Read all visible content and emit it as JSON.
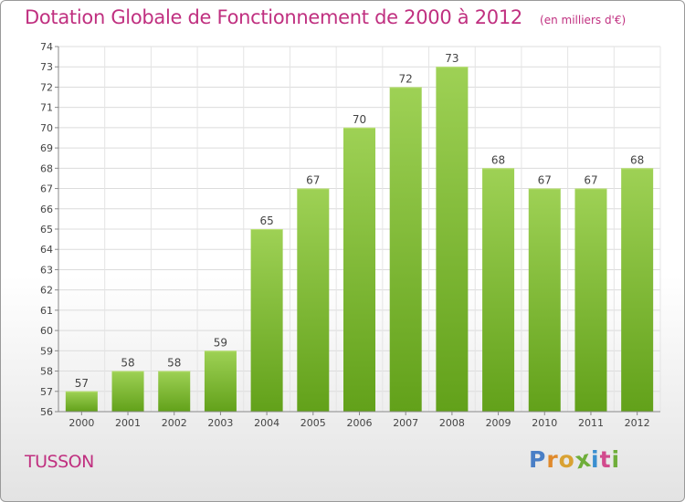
{
  "title": "Dotation Globale de Fonctionnement de 2000 à 2012",
  "unit_note": "(en milliers d'€)",
  "commune": "TUSSON",
  "logo": {
    "letters": [
      "P",
      "r",
      "o",
      "x",
      "i",
      "t",
      "i"
    ],
    "colors": [
      "#4a7fc6",
      "#e08a2c",
      "#d9a233",
      "#6fae3a",
      "#3a8fd0",
      "#d24a8d",
      "#6fae3a"
    ]
  },
  "chart_data": {
    "type": "bar",
    "title": "Dotation Globale de Fonctionnement de 2000 à 2012",
    "xlabel": "",
    "ylabel": "",
    "categories": [
      "2000",
      "2001",
      "2002",
      "2003",
      "2004",
      "2005",
      "2006",
      "2007",
      "2008",
      "2009",
      "2010",
      "2011",
      "2012"
    ],
    "values": [
      57,
      58,
      58,
      59,
      65,
      67,
      70,
      72,
      73,
      68,
      67,
      67,
      68
    ],
    "ylim": [
      56,
      74
    ],
    "yticks": [
      56,
      57,
      58,
      59,
      60,
      61,
      62,
      63,
      64,
      65,
      66,
      67,
      68,
      69,
      70,
      71,
      72,
      73,
      74
    ],
    "bar_color_top": "#9ed155",
    "bar_color_bottom": "#62a11a",
    "grid": true
  }
}
